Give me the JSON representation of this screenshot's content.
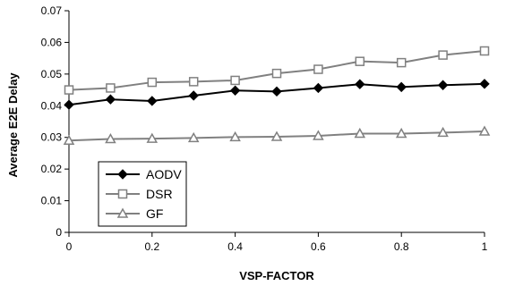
{
  "chart_data": {
    "type": "line",
    "title": "",
    "xlabel": "VSP-FACTOR",
    "ylabel": "Average E2E Delay",
    "x": [
      0,
      0.1,
      0.2,
      0.3,
      0.4,
      0.5,
      0.6,
      0.7,
      0.8,
      0.9,
      1
    ],
    "xlim": [
      0,
      1
    ],
    "ylim": [
      0,
      0.07
    ],
    "x_ticks": [
      0,
      0.2,
      0.4,
      0.6,
      0.8,
      1
    ],
    "x_tick_labels": [
      "0",
      "0.2",
      "0.4",
      "0.6",
      "0.8",
      "1"
    ],
    "y_ticks": [
      0,
      0.01,
      0.02,
      0.03,
      0.04,
      0.05,
      0.06,
      0.07
    ],
    "y_tick_labels": [
      "0",
      "0.01",
      "0.02",
      "0.03",
      "0.04",
      "0.05",
      "0.06",
      "0.07"
    ],
    "grid": false,
    "legend_position": "bottom-left",
    "series": [
      {
        "name": "AODV",
        "color": "#000000",
        "marker": "diamond",
        "values": [
          0.0403,
          0.042,
          0.0415,
          0.0432,
          0.0448,
          0.0445,
          0.0456,
          0.0468,
          0.0459,
          0.0465,
          0.0469
        ]
      },
      {
        "name": "DSR",
        "color": "#808080",
        "marker": "square",
        "values": [
          0.045,
          0.0456,
          0.0474,
          0.0476,
          0.048,
          0.0502,
          0.0515,
          0.054,
          0.0536,
          0.056,
          0.0573
        ]
      },
      {
        "name": "GF",
        "color": "#808080",
        "marker": "triangle",
        "values": [
          0.029,
          0.0295,
          0.0296,
          0.0298,
          0.0301,
          0.0302,
          0.0305,
          0.0312,
          0.0312,
          0.0315,
          0.0319
        ]
      }
    ]
  }
}
